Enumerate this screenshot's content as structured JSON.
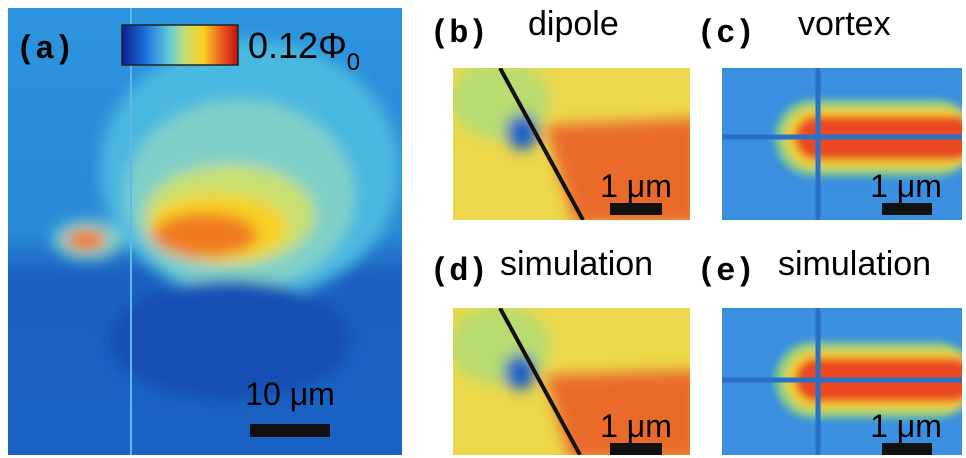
{
  "panels": [
    {
      "label": "(a)",
      "scale_bar": "10 μm"
    },
    {
      "label": "(b)",
      "title": "dipole",
      "scale_bar": "1 μm"
    },
    {
      "label": "(c)",
      "title": "vortex",
      "scale_bar": "1 μm"
    },
    {
      "label": "(d)",
      "title": "simulation",
      "scale_bar": "1 μm"
    },
    {
      "label": "(e)",
      "title": "simulation",
      "scale_bar": "1 μm"
    }
  ],
  "colorbar": {
    "label": "0.12Φ",
    "subscript": "0"
  }
}
